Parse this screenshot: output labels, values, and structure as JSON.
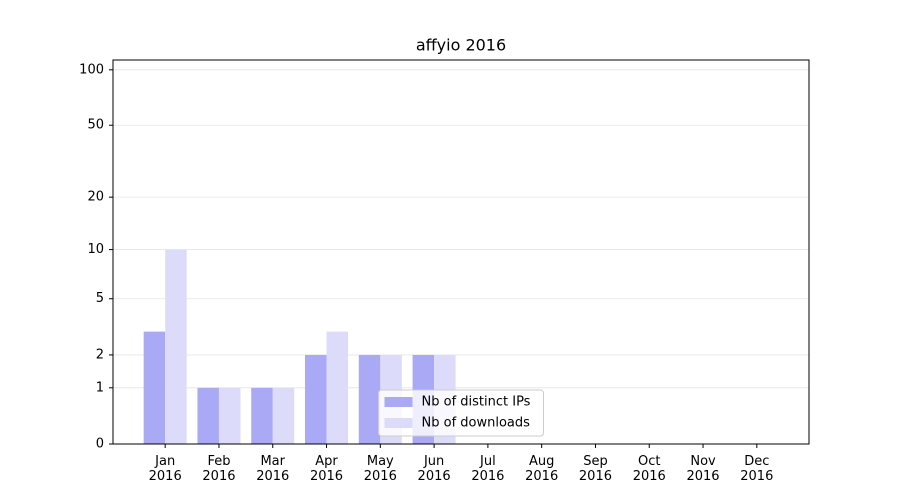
{
  "chart_data": {
    "type": "bar",
    "title": "affyio 2016",
    "categories": [
      "Jan\n2016",
      "Feb\n2016",
      "Mar\n2016",
      "Apr\n2016",
      "May\n2016",
      "Jun\n2016",
      "Jul\n2016",
      "Aug\n2016",
      "Sep\n2016",
      "Oct\n2016",
      "Nov\n2016",
      "Dec\n2016"
    ],
    "series": [
      {
        "name": "Nb of distinct IPs",
        "color": "#a9a9f5",
        "values": [
          3,
          1,
          1,
          2,
          2,
          2,
          0,
          0,
          0,
          0,
          0,
          0
        ]
      },
      {
        "name": "Nb of downloads",
        "color": "#dcdcfa",
        "values": [
          10,
          1,
          1,
          3,
          2,
          2,
          0,
          0,
          0,
          0,
          0,
          0
        ]
      }
    ],
    "yscale": "log1p",
    "ylim": [
      0,
      113
    ],
    "yticks": [
      0,
      1,
      2,
      5,
      10,
      20,
      50,
      100
    ],
    "grid": true,
    "legend": "lower center"
  }
}
